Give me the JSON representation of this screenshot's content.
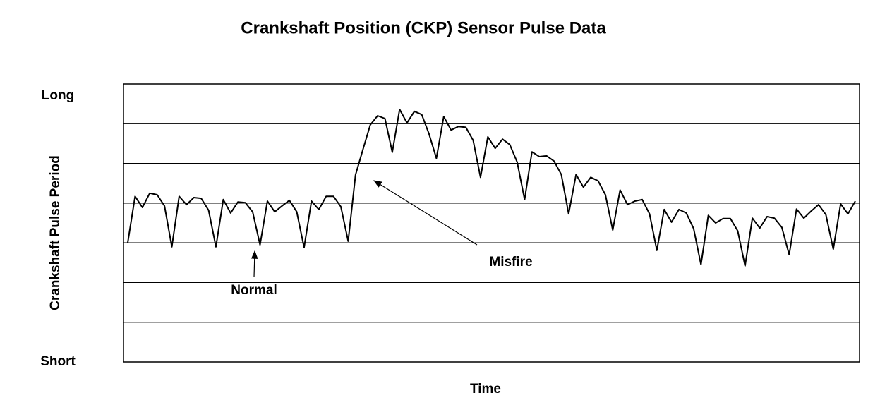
{
  "chart_data": {
    "type": "line",
    "title": "Crankshaft Position (CKP) Sensor Pulse Data",
    "xlabel": "Time",
    "ylabel": "Crankshaft Pulse Period",
    "ylim": [
      0,
      7
    ],
    "yticks": [
      {
        "value": 0,
        "label": "Short"
      },
      {
        "value": 7,
        "label": "Long"
      }
    ],
    "ygrid": [
      1,
      2,
      3,
      4,
      5,
      6
    ],
    "color": "#000000",
    "annotations": [
      "Normal",
      "Misfire"
    ],
    "values": [
      3.0,
      4.17,
      3.89,
      4.25,
      4.21,
      3.93,
      2.9,
      4.17,
      3.96,
      4.14,
      4.12,
      3.82,
      2.9,
      4.09,
      3.75,
      4.03,
      4.01,
      3.78,
      2.95,
      4.05,
      3.78,
      3.93,
      4.07,
      3.78,
      2.88,
      4.05,
      3.84,
      4.17,
      4.17,
      3.91,
      3.04,
      4.71,
      5.35,
      5.97,
      6.2,
      6.13,
      5.28,
      6.36,
      6.02,
      6.31,
      6.23,
      5.74,
      5.13,
      6.18,
      5.84,
      5.93,
      5.91,
      5.58,
      4.65,
      5.67,
      5.38,
      5.61,
      5.47,
      5.03,
      4.09,
      5.29,
      5.17,
      5.19,
      5.06,
      4.72,
      3.73,
      4.72,
      4.4,
      4.65,
      4.56,
      4.21,
      3.32,
      4.33,
      3.96,
      4.05,
      4.09,
      3.73,
      2.81,
      3.84,
      3.52,
      3.84,
      3.75,
      3.36,
      2.45,
      3.69,
      3.5,
      3.61,
      3.61,
      3.3,
      2.42,
      3.62,
      3.37,
      3.66,
      3.62,
      3.39,
      2.7,
      3.85,
      3.62,
      3.8,
      3.96,
      3.71,
      2.84,
      3.98,
      3.73,
      4.05
    ]
  }
}
